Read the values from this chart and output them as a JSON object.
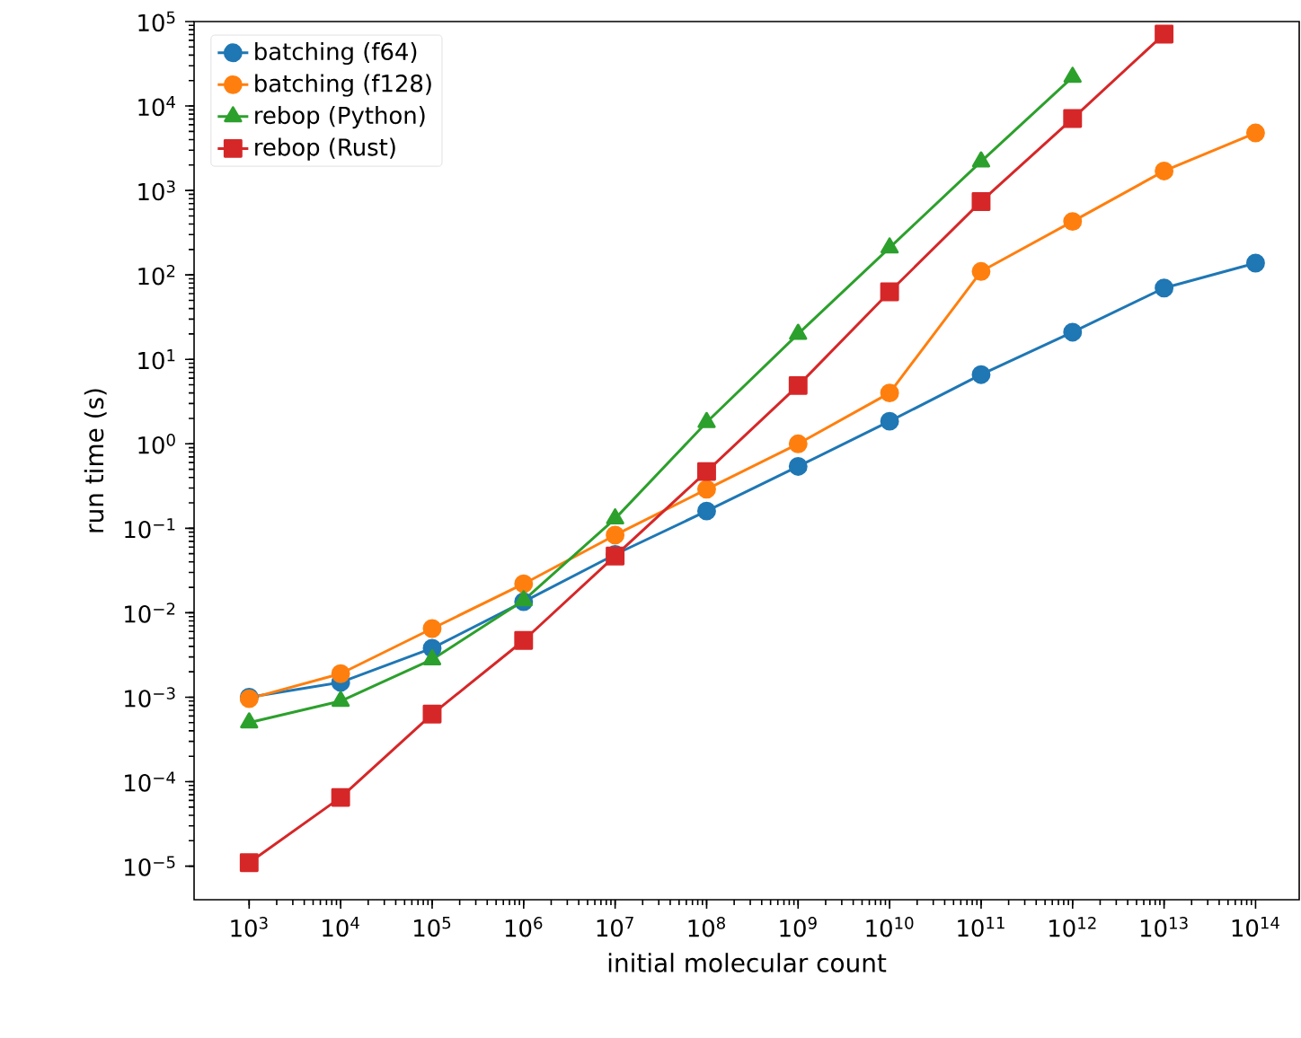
{
  "chart_data": {
    "type": "line",
    "xlabel": "initial molecular count",
    "ylabel": "run time (s)",
    "log": "xy",
    "legend": "top left",
    "grid": false,
    "line_style": "solid",
    "x": [
      1000.0,
      10000.0,
      100000.0,
      1000000.0,
      10000000.0,
      100000000.0,
      1000000000.0,
      10000000000.0,
      100000000000.0,
      1000000000000.0,
      10000000000000.0,
      100000000000000.0
    ],
    "xlim": [
      250,
      300000000000000.0
    ],
    "ylim": [
      4e-06,
      100000.0
    ],
    "xticks": [
      {
        "value": 1000.0,
        "label": "10$^{3}$"
      },
      {
        "value": 10000.0,
        "label": "10$^{4}$"
      },
      {
        "value": 100000.0,
        "label": "10$^{5}$"
      },
      {
        "value": 1000000.0,
        "label": "10$^{6}$"
      },
      {
        "value": 10000000.0,
        "label": "10$^{7}$"
      },
      {
        "value": 100000000.0,
        "label": "10$^{8}$"
      },
      {
        "value": 1000000000.0,
        "label": "10$^{9}$"
      },
      {
        "value": 10000000000.0,
        "label": "10$^{10}$"
      },
      {
        "value": 100000000000.0,
        "label": "10$^{11}$"
      },
      {
        "value": 1000000000000.0,
        "label": "10$^{12}$"
      },
      {
        "value": 10000000000000.0,
        "label": "10$^{13}$"
      },
      {
        "value": 100000000000000.0,
        "label": "10$^{14}$"
      }
    ],
    "yticks": [
      {
        "value": 1e-05,
        "label": "10$^{−5}$"
      },
      {
        "value": 0.0001,
        "label": "10$^{−4}$"
      },
      {
        "value": 0.001,
        "label": "10$^{−3}$"
      },
      {
        "value": 0.01,
        "label": "10$^{−2}$"
      },
      {
        "value": 0.1,
        "label": "10$^{−1}$"
      },
      {
        "value": 1,
        "label": "10$^{0}$"
      },
      {
        "value": 10,
        "label": "10$^{1}$"
      },
      {
        "value": 100,
        "label": "10$^{2}$"
      },
      {
        "value": 1000.0,
        "label": "10$^{3}$"
      },
      {
        "value": 10000.0,
        "label": "10$^{4}$"
      },
      {
        "value": 100000.0,
        "label": "10$^{5}$"
      }
    ],
    "series": [
      {
        "name": "batching (f64)",
        "color": "#1f77b4",
        "marker": "circle",
        "values": [
          0.001,
          0.0015,
          0.0038,
          0.0135,
          0.049,
          0.16,
          0.54,
          1.85,
          6.6,
          21,
          70,
          138
        ]
      },
      {
        "name": "batching (f128)",
        "color": "#ff7f0e",
        "marker": "circle",
        "values": [
          0.00096,
          0.0019,
          0.0065,
          0.022,
          0.083,
          0.29,
          1.0,
          4.0,
          110,
          430,
          1700,
          4800
        ]
      },
      {
        "name": "rebop (Python)",
        "color": "#2ca02c",
        "marker": "triangle",
        "values": [
          0.0005,
          0.0009,
          0.0028,
          0.014,
          0.13,
          1.8,
          20,
          210,
          2200,
          22000,
          null,
          null
        ]
      },
      {
        "name": "rebop (Rust)",
        "color": "#d62728",
        "marker": "square",
        "values": [
          1.1e-05,
          6.5e-05,
          0.00063,
          0.0047,
          0.047,
          0.47,
          4.9,
          63,
          740,
          7100,
          71000,
          null
        ]
      }
    ]
  }
}
